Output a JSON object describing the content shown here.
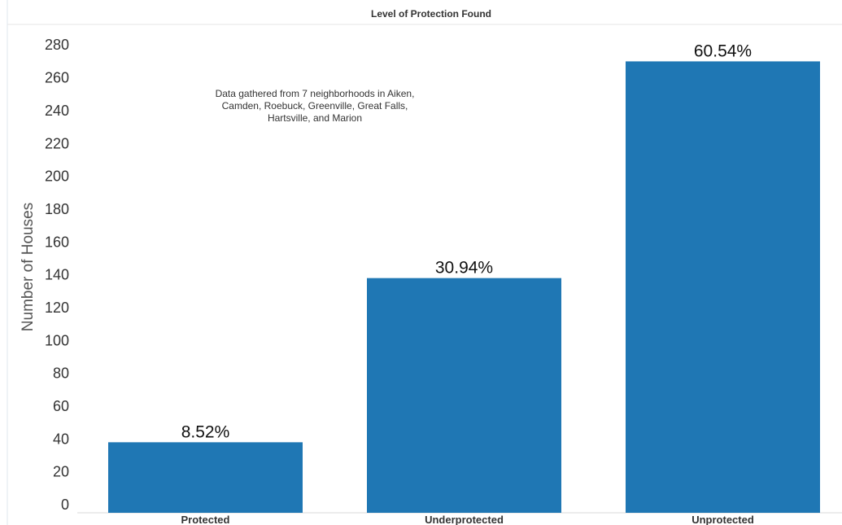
{
  "chart_data": {
    "type": "bar",
    "title": "Level of Protection Found",
    "xlabel": "",
    "ylabel": "Number of Houses",
    "categories": [
      "Protected",
      "Underprotected",
      "Unprotected"
    ],
    "values": [
      38,
      138,
      270
    ],
    "data_labels": [
      "8.52%",
      "30.94%",
      "60.54%"
    ],
    "ylim": [
      0,
      290
    ],
    "yticks": [
      0,
      20,
      40,
      60,
      80,
      100,
      120,
      140,
      160,
      180,
      200,
      220,
      240,
      260,
      280
    ],
    "annotation": [
      "Data gathered from 7 neighborhoods in Aiken,",
      "Camden, Roebuck, Greenville, Great Falls,",
      "Hartsville, and Marion"
    ],
    "bar_color": "#1f77b4",
    "grid": false,
    "legend": "none"
  }
}
